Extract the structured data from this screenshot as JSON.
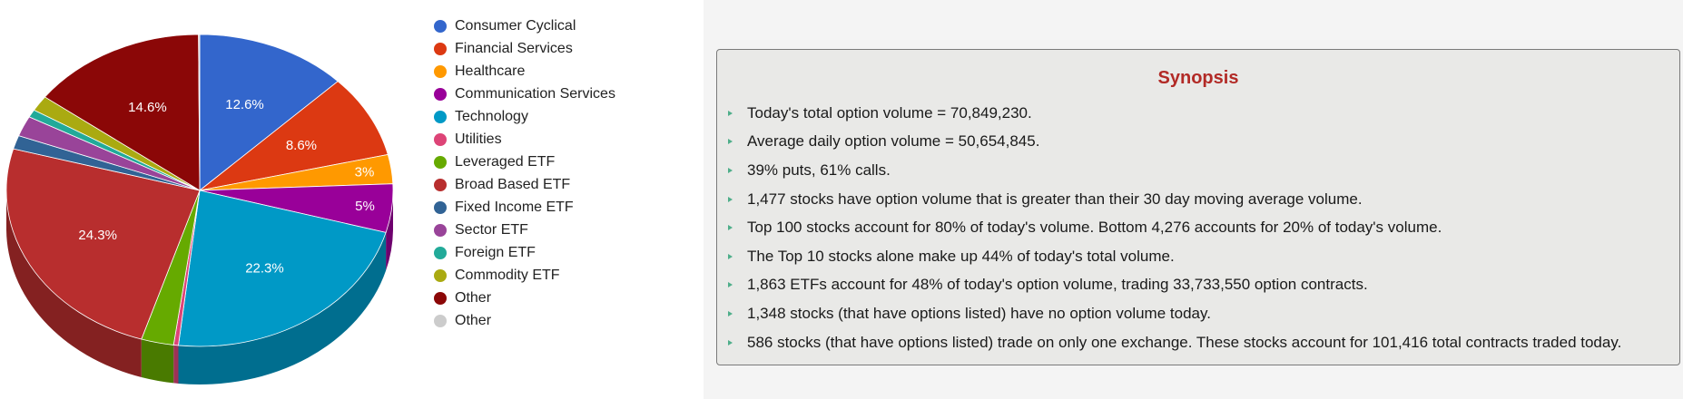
{
  "chart_data": {
    "type": "pie",
    "title": "",
    "slices": [
      {
        "label": "Consumer Cyclical",
        "value": 12.6,
        "color": "#3366cc",
        "data_label": "12.6%"
      },
      {
        "label": "Financial Services",
        "value": 8.6,
        "color": "#dc3912",
        "data_label": "8.6%"
      },
      {
        "label": "Healthcare",
        "value": 3.0,
        "color": "#ff9900",
        "data_label": "3%"
      },
      {
        "label": "Communication Services",
        "value": 5.0,
        "color": "#990099",
        "data_label": "5%"
      },
      {
        "label": "Technology",
        "value": 22.3,
        "color": "#0099c6",
        "data_label": "22.3%"
      },
      {
        "label": "Utilities",
        "value": 0.4,
        "color": "#dd4477",
        "data_label": ""
      },
      {
        "label": "Leveraged ETF",
        "value": 2.7,
        "color": "#66aa00",
        "data_label": ""
      },
      {
        "label": "Broad Based ETF",
        "value": 24.3,
        "color": "#b82e2e",
        "data_label": "24.3%"
      },
      {
        "label": "Fixed Income ETF",
        "value": 1.4,
        "color": "#316395",
        "data_label": ""
      },
      {
        "label": "Sector ETF",
        "value": 2.1,
        "color": "#994499",
        "data_label": ""
      },
      {
        "label": "Foreign ETF",
        "value": 0.8,
        "color": "#22aa99",
        "data_label": ""
      },
      {
        "label": "Commodity ETF",
        "value": 1.6,
        "color": "#aaaa11",
        "data_label": ""
      },
      {
        "label": "Other",
        "value": 14.6,
        "color": "#8b0707",
        "data_label": "14.6%"
      },
      {
        "label": "Other",
        "value": 0.1,
        "color": "#cccccc",
        "data_label": ""
      }
    ],
    "legend_position": "right"
  },
  "synopsis": {
    "title": "Synopsis",
    "items": [
      "Today's total option volume = 70,849,230.",
      "Average daily option volume = 50,654,845.",
      "39% puts, 61% calls.",
      "1,477 stocks have option volume that is greater than their 30 day moving average volume.",
      "Top 100 stocks account for 80% of today's volume. Bottom 4,276 accounts for 20% of today's volume.",
      "The Top 10 stocks alone make up 44% of today's total volume.",
      "1,863 ETFs account for 48% of today's option volume, trading 33,733,550 option contracts.",
      "1,348 stocks (that have options listed) have no option volume today.",
      "586 stocks (that have options listed) trade on only one exchange. These stocks account for 101,416 total contracts traded today."
    ]
  }
}
